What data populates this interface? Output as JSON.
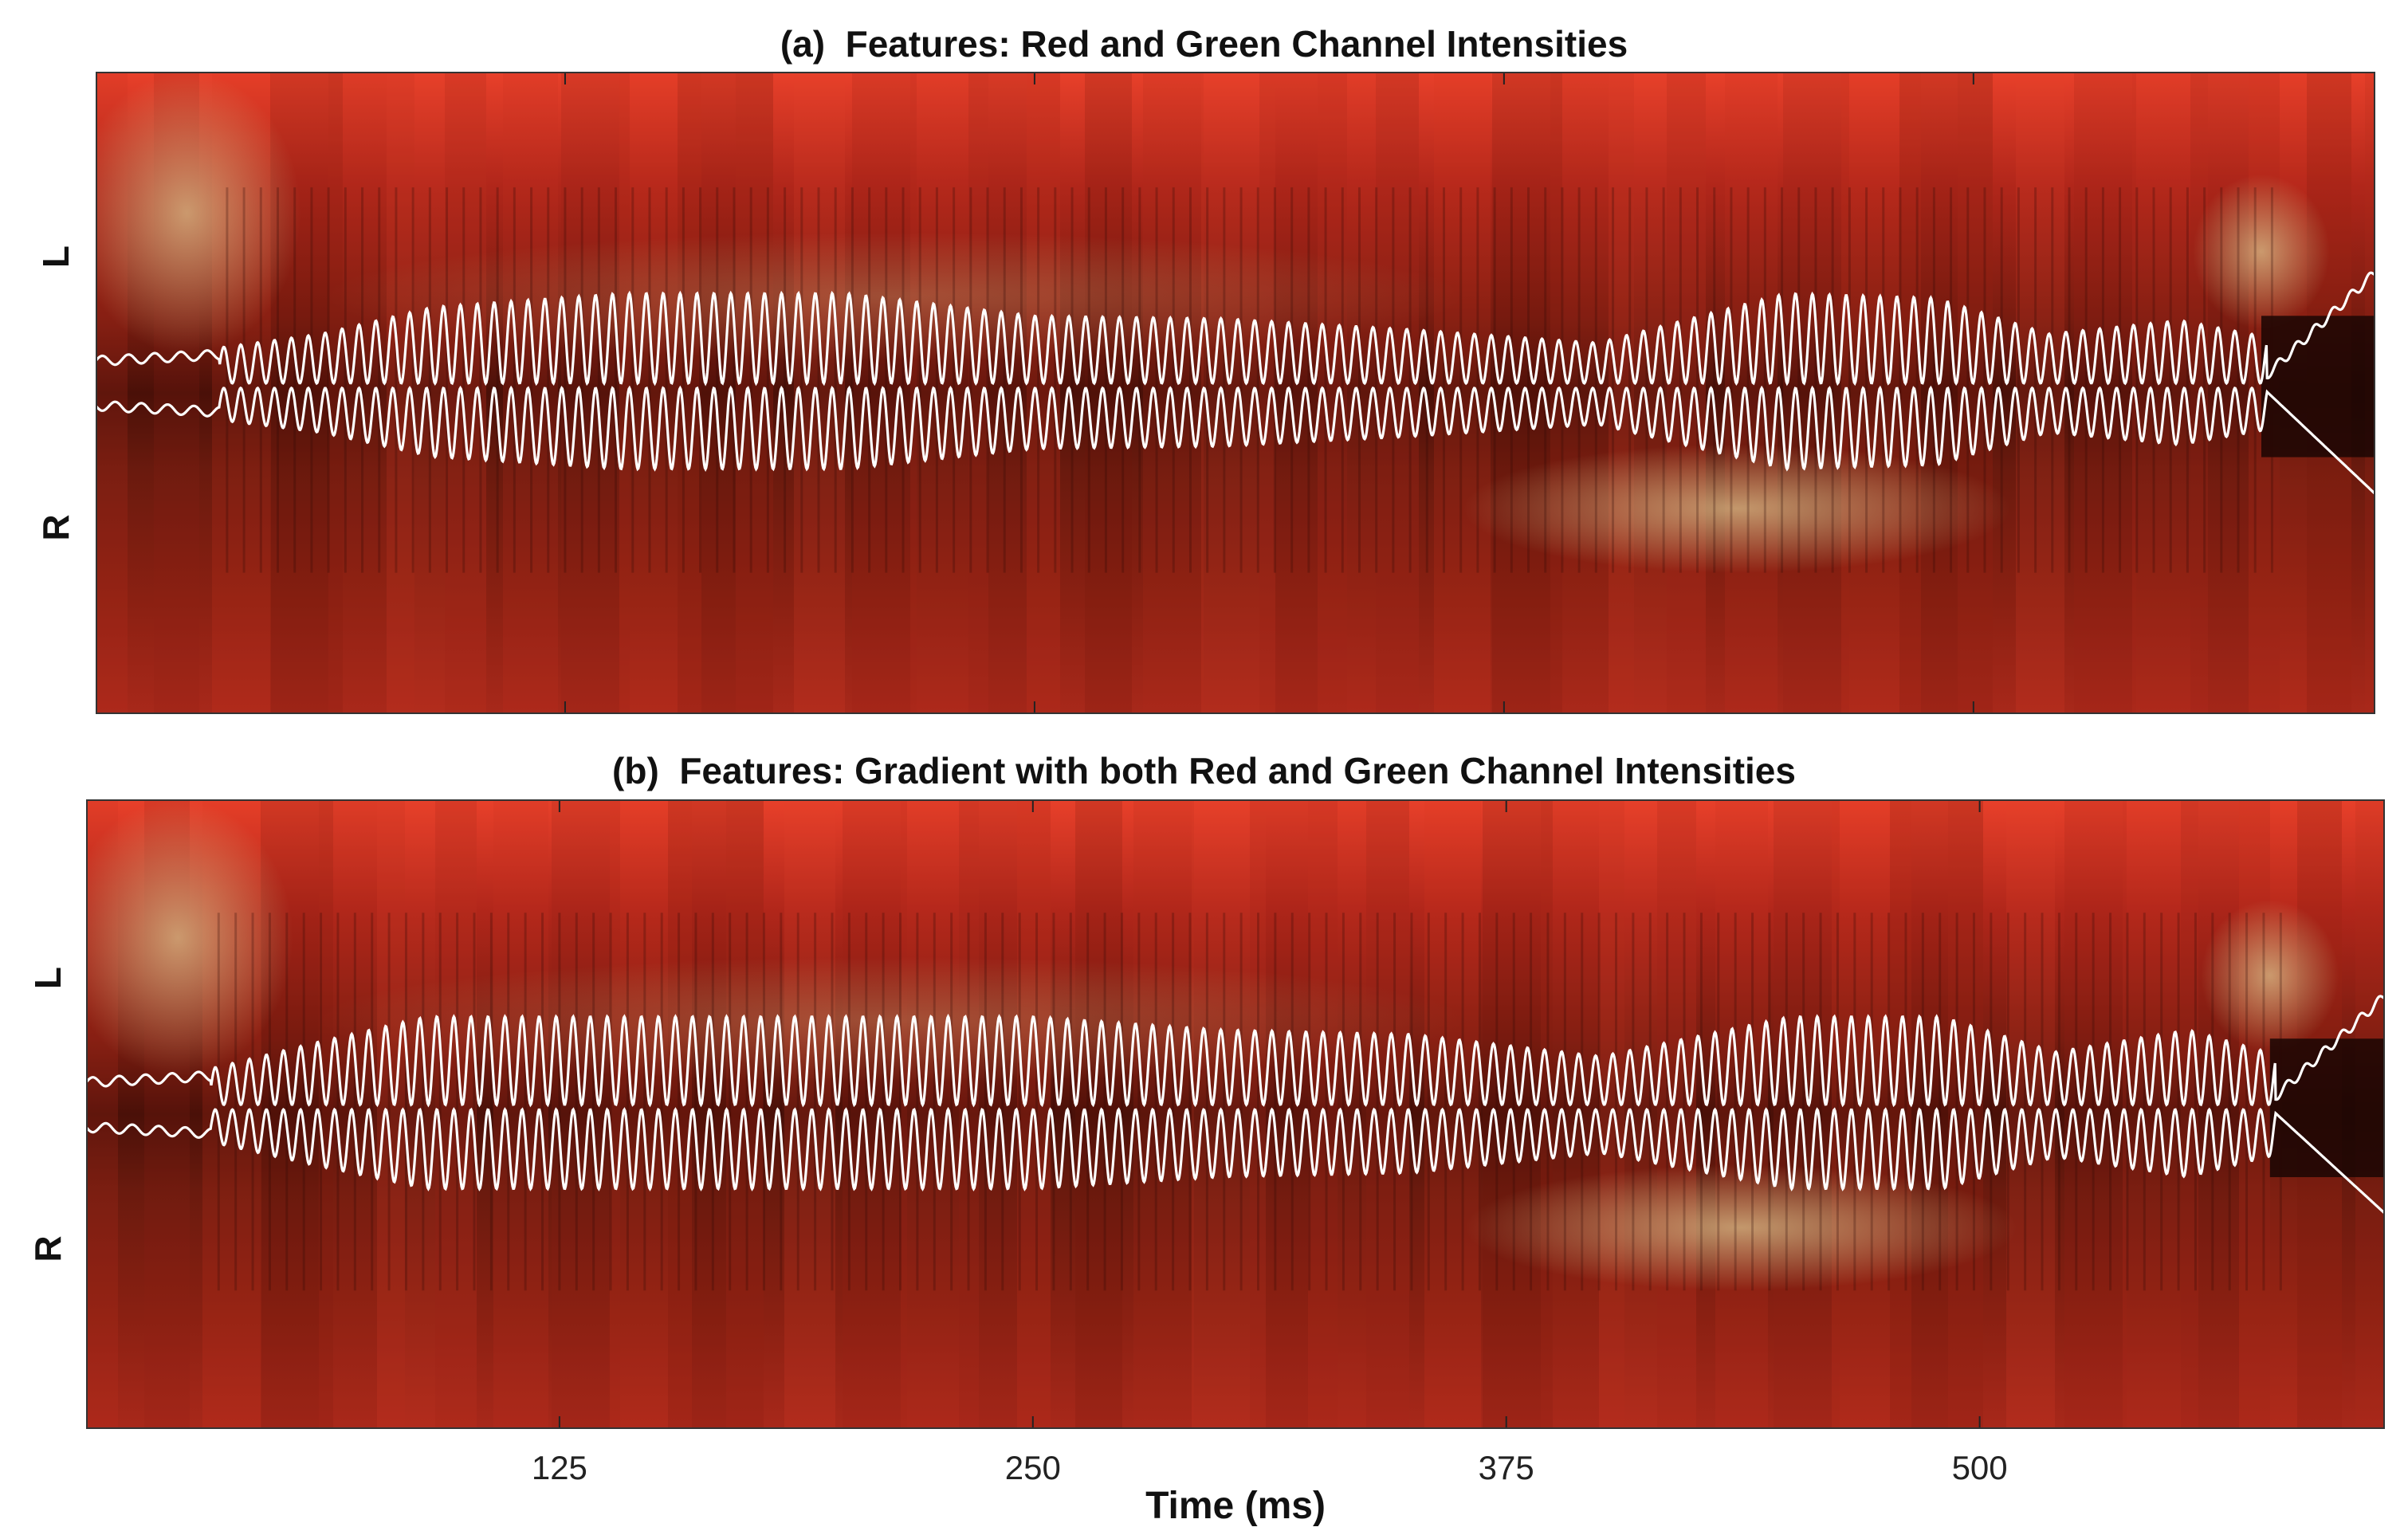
{
  "chart_data": [
    {
      "type": "heatmap",
      "title": "(a)  Features: Red and Green Channel Intensities",
      "ylabels": [
        "L",
        "R"
      ],
      "xlabel": "",
      "xticks": [
        125,
        250,
        375,
        500
      ],
      "xlim": [
        0,
        607
      ],
      "grid": false,
      "colors": {
        "base": "#b0261a",
        "bright": "#e8402a",
        "dark": "#4a1008",
        "highlight": "#d9c08a",
        "trace": "#ffffff"
      },
      "series": [
        {
          "x": [
            0,
            30,
            60,
            90,
            140,
            200,
            250,
            300,
            350,
            400,
            450,
            490,
            520,
            555,
            580,
            607
          ],
          "amplitude": [
            0.35,
            0.38,
            0.55,
            0.85,
            1.0,
            1.0,
            0.75,
            0.72,
            0.6,
            0.45,
            1.0,
            0.95,
            0.55,
            0.7,
            0.5,
            0.4
          ]
        }
      ]
    },
    {
      "type": "heatmap",
      "title": "(b)  Features: Gradient with both Red and Green Channel Intensities",
      "ylabels": [
        "L",
        "R"
      ],
      "xlabel": "Time (ms)",
      "xticks": [
        125,
        250,
        375,
        500
      ],
      "xlim": [
        0,
        607
      ],
      "grid": false,
      "colors": {
        "base": "#b0261a",
        "bright": "#e8402a",
        "dark": "#4a1008",
        "highlight": "#d9c08a",
        "trace": "#ffffff"
      },
      "series": [
        {
          "x": [
            0,
            30,
            60,
            90,
            140,
            200,
            250,
            300,
            350,
            400,
            450,
            490,
            520,
            555,
            580,
            607
          ],
          "amplitude": [
            0.35,
            0.38,
            0.7,
            1.0,
            1.0,
            1.0,
            1.0,
            0.85,
            0.8,
            0.55,
            1.0,
            1.0,
            0.6,
            0.85,
            0.55,
            0.45
          ]
        }
      ]
    }
  ]
}
